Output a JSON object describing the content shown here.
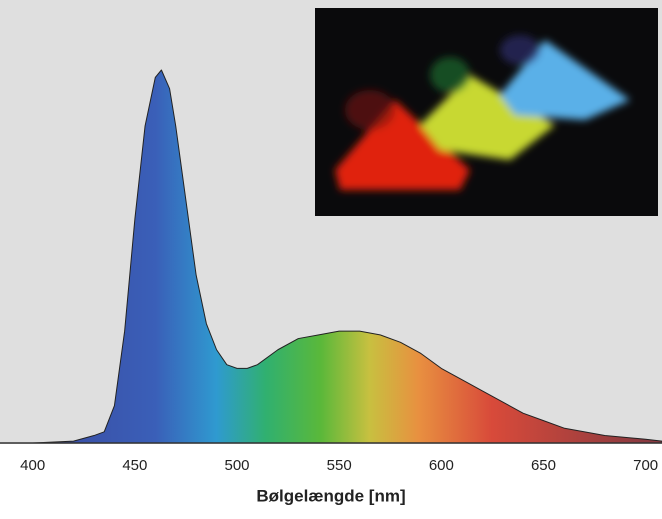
{
  "chart_data": {
    "type": "area",
    "x_label": "Bølgelængde [nm]",
    "x": [
      400,
      420,
      430,
      435,
      440,
      445,
      450,
      455,
      460,
      463,
      467,
      470,
      475,
      480,
      485,
      490,
      495,
      500,
      505,
      510,
      520,
      530,
      540,
      550,
      560,
      570,
      580,
      590,
      600,
      620,
      640,
      650,
      660,
      680,
      700,
      708
    ],
    "values": [
      0,
      0.005,
      0.02,
      0.03,
      0.1,
      0.3,
      0.6,
      0.85,
      0.98,
      1.0,
      0.95,
      0.85,
      0.65,
      0.45,
      0.32,
      0.25,
      0.21,
      0.2,
      0.2,
      0.21,
      0.25,
      0.28,
      0.29,
      0.3,
      0.3,
      0.29,
      0.27,
      0.24,
      0.2,
      0.14,
      0.08,
      0.06,
      0.04,
      0.02,
      0.01,
      0.005
    ],
    "xlim": [
      384,
      708
    ],
    "ylim": [
      0,
      1.03
    ],
    "xticks": [
      400,
      450,
      500,
      550,
      600,
      650,
      700
    ]
  }
}
